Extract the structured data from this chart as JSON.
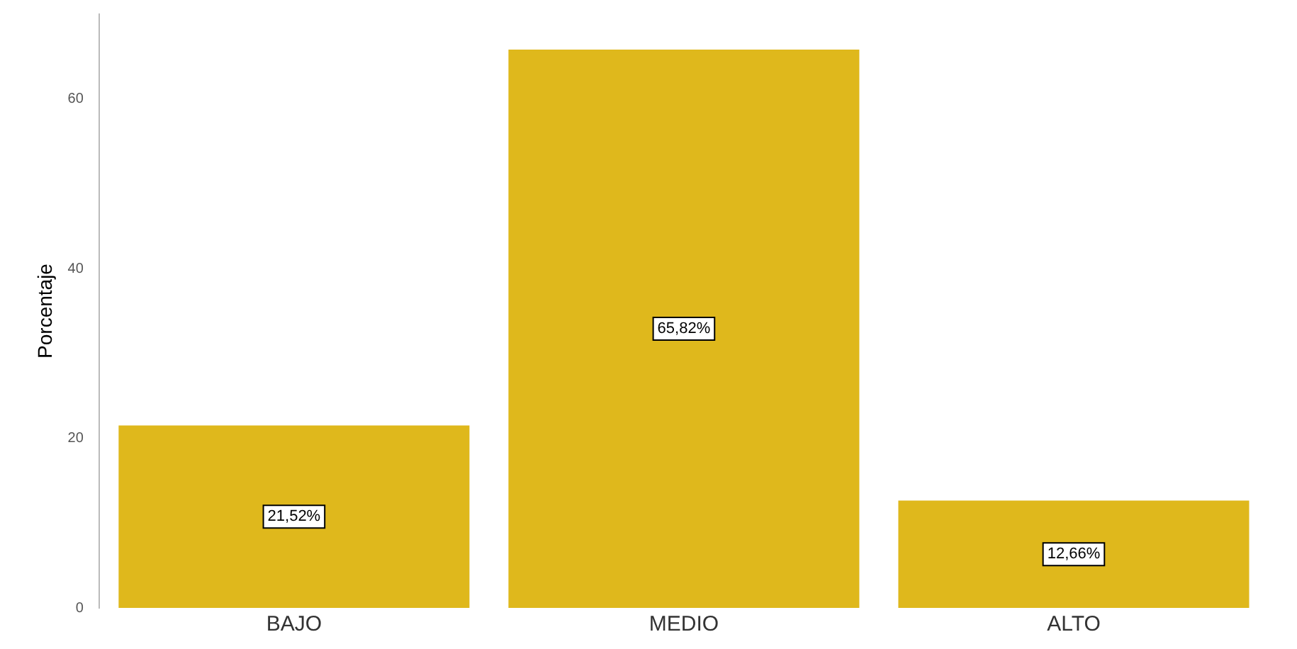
{
  "chart_data": {
    "type": "bar",
    "ylabel": "Porcentaje",
    "categories": [
      "BAJO",
      "MEDIO",
      "ALTO"
    ],
    "values": [
      21.52,
      65.82,
      12.66
    ],
    "color": "#dfb81c",
    "value_labels": [
      "21,52%",
      "65,82%",
      "12,66%"
    ],
    "ylim": [
      0,
      70
    ],
    "yticks": [
      0,
      20,
      40,
      60
    ],
    "grid": false,
    "legend": false
  }
}
